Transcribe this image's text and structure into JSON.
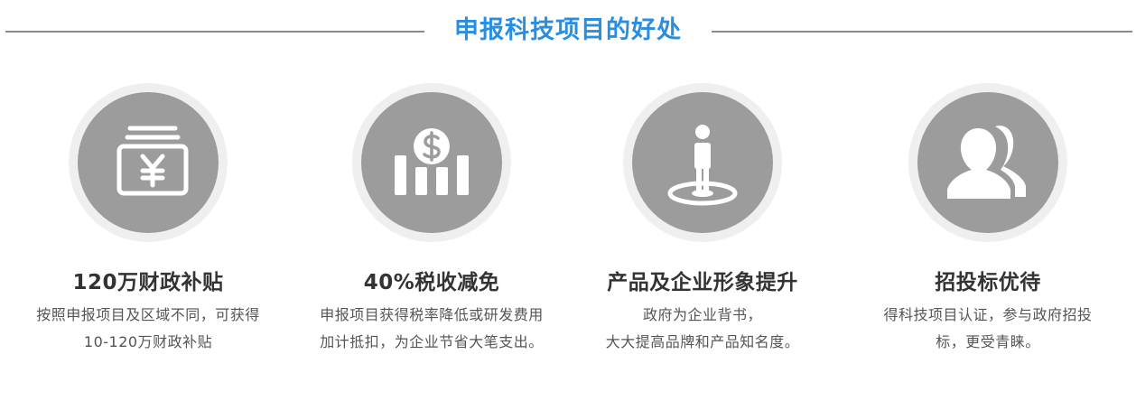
{
  "header": {
    "title": "申报科技项目的好处"
  },
  "cards": [
    {
      "icon": "yen-money-icon",
      "title": "120万财政补贴",
      "desc": "按照申报项目及区域不同，可获得10-120万财政补贴"
    },
    {
      "icon": "dollar-chart-icon",
      "title": "40%税收减免",
      "desc": "申报项目获得税率降低或研发费用加计抵扣，为企业节省大笔支出。"
    },
    {
      "icon": "person-on-target-icon",
      "title": "产品及企业形象提升",
      "desc": "政府为企业背书，\n大大提高品牌和产品知名度。"
    },
    {
      "icon": "users-icon",
      "title": "招投标优待",
      "desc": "得科技项目认证，参与政府招投标，更受青睐。"
    }
  ],
  "colors": {
    "title_blue": "#2a8ee0",
    "icon_circle": "#9c9c9c",
    "icon_ring": "#efefef",
    "text_dark": "#333333",
    "text_body": "#555555"
  }
}
